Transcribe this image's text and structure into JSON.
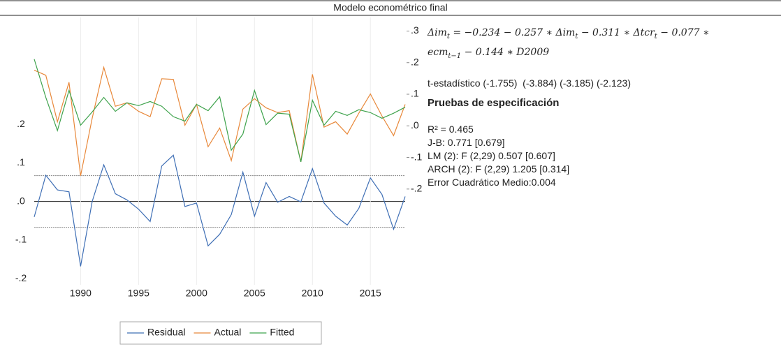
{
  "chart_data": {
    "type": "line",
    "title": "Modelo econométrico final",
    "x": [
      1986,
      1987,
      1988,
      1989,
      1990,
      1991,
      1992,
      1993,
      1994,
      1995,
      1996,
      1997,
      1998,
      1999,
      2000,
      2001,
      2002,
      2003,
      2004,
      2005,
      2006,
      2007,
      2008,
      2009,
      2010,
      2011,
      2012,
      2013,
      2014,
      2015,
      2016,
      2017,
      2018
    ],
    "series": [
      {
        "name": "Residual",
        "color": "#3f6fb5",
        "axis": "y",
        "values": [
          -0.04,
          0.068,
          0.03,
          0.025,
          -0.168,
          0.0,
          0.095,
          0.02,
          0.004,
          -0.02,
          -0.052,
          0.092,
          0.12,
          -0.013,
          -0.004,
          -0.115,
          -0.085,
          -0.034,
          0.076,
          -0.038,
          0.049,
          -0.002,
          0.013,
          -0.001,
          0.085,
          -0.004,
          -0.038,
          -0.061,
          -0.018,
          0.061,
          0.018,
          -0.072,
          0.013
        ]
      },
      {
        "name": "Actual",
        "color": "#e8883a",
        "axis": "y2",
        "values": [
          0.176,
          0.16,
          0.013,
          0.138,
          -0.158,
          0.024,
          0.185,
          0.062,
          0.073,
          0.046,
          0.029,
          0.149,
          0.147,
          0.002,
          0.068,
          -0.066,
          -0.007,
          -0.11,
          0.053,
          0.086,
          0.057,
          0.042,
          0.048,
          -0.114,
          0.163,
          -0.004,
          0.013,
          -0.026,
          0.04,
          0.101,
          0.031,
          -0.031,
          0.068
        ]
      },
      {
        "name": "Fitted",
        "color": "#3fa34d",
        "axis": "y2",
        "values": [
          0.211,
          0.09,
          -0.015,
          0.112,
          0.002,
          0.044,
          0.09,
          0.046,
          0.073,
          0.064,
          0.077,
          0.062,
          0.029,
          0.015,
          0.068,
          0.048,
          0.092,
          -0.077,
          -0.026,
          0.112,
          0.004,
          0.04,
          0.037,
          -0.114,
          0.081,
          0.002,
          0.046,
          0.033,
          0.051,
          0.042,
          0.024,
          0.04,
          0.059
        ]
      }
    ],
    "residual_band": [
      -0.067,
      0.067
    ],
    "xlim": [
      1986,
      2018
    ],
    "xticks": [
      1990,
      1995,
      2000,
      2005,
      2010,
      2015
    ],
    "ylim": [
      -0.216,
      0.477
    ],
    "yticks": [
      {
        "value": 0.2,
        "label": ".2"
      },
      {
        "value": 0.1,
        "label": ".1"
      },
      {
        "value": 0,
        "label": ".0"
      },
      {
        "value": -0.1,
        "label": "-.1"
      },
      {
        "value": -0.2,
        "label": "-.2"
      }
    ],
    "y2lim": [
      -0.503,
      0.343
    ],
    "y2ticks": [
      {
        "value": 0.3,
        "label": ".3"
      },
      {
        "value": 0.2,
        "label": ".2"
      },
      {
        "value": 0.1,
        "label": ".1"
      },
      {
        "value": 0,
        "label": ".0"
      },
      {
        "value": -0.1,
        "label": "-.1"
      },
      {
        "value": -0.2,
        "label": "-.2"
      }
    ],
    "legend": "bottom"
  },
  "model": {
    "equation": [
      [
        {
          "t": "Δim",
          "sub": "t"
        },
        {
          "t": " = −0.234 − 0.257 ∗ Δim",
          "sub": "t"
        },
        {
          "t": " − 0.311 ∗ Δtcr",
          "sub": "t"
        },
        {
          "t": " − 0.077 ∗"
        }
      ],
      [
        {
          "t": "ecm",
          "sub": "t−1"
        },
        {
          "t": " − 0.144 ∗ D2009"
        }
      ]
    ],
    "t_stats": "t-estadístico (-1.755)  (-3.884) (-3.185) (-2.123)",
    "tests_title": "Pruebas de especificación",
    "tests": [
      "R² = 0.465",
      "J-B: 0.771 [0.679]",
      "LM (2): F (2,29) 0.507 [0.607]",
      "ARCH (2): F (2,29) 1.205 [0.314]",
      "Error Cuadrático Medio:0.004"
    ]
  }
}
